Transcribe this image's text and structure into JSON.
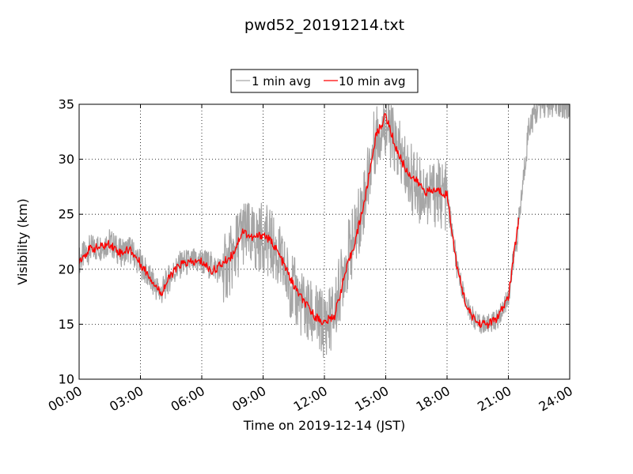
{
  "chart_data": {
    "type": "line",
    "title": "pwd52_20191214.txt",
    "xlabel": "Time on 2019-12-14 (JST)",
    "ylabel": "Visibility (km)",
    "xlim": [
      0,
      24
    ],
    "ylim": [
      10,
      35
    ],
    "x_ticks": [
      0,
      3,
      6,
      9,
      12,
      15,
      18,
      21,
      24
    ],
    "x_tick_labels": [
      "00:00",
      "03:00",
      "06:00",
      "09:00",
      "12:00",
      "15:00",
      "18:00",
      "21:00",
      "24:00"
    ],
    "y_ticks": [
      10,
      15,
      20,
      25,
      30,
      35
    ],
    "y_tick_labels": [
      "10",
      "15",
      "20",
      "25",
      "30",
      "35"
    ],
    "grid": true,
    "legend_position": "top-center",
    "series": [
      {
        "name": "1 min avg",
        "color": "#a6a6a6",
        "x": [
          0.0,
          0.5,
          1.0,
          1.5,
          2.0,
          2.5,
          3.0,
          3.5,
          4.0,
          4.5,
          5.0,
          5.5,
          6.0,
          6.5,
          7.0,
          7.5,
          8.0,
          8.5,
          9.0,
          9.5,
          10.0,
          10.5,
          11.0,
          11.5,
          12.0,
          12.5,
          13.0,
          13.5,
          14.0,
          14.5,
          15.0,
          15.5,
          16.0,
          16.5,
          17.0,
          17.5,
          18.0,
          18.5,
          19.0,
          19.5,
          20.0,
          20.5,
          21.0,
          21.5,
          22.0,
          22.5,
          23.0,
          23.5,
          24.0
        ],
        "y": [
          20.8,
          21.8,
          22.0,
          22.5,
          21.5,
          21.8,
          20.5,
          19.0,
          17.8,
          19.5,
          20.5,
          20.6,
          20.7,
          20.3,
          19.8,
          21.0,
          23.5,
          22.5,
          23.0,
          22.0,
          20.0,
          18.0,
          16.5,
          15.5,
          15.0,
          16.0,
          20.5,
          23.0,
          27.0,
          32.0,
          33.5,
          31.0,
          29.0,
          27.5,
          27.0,
          27.0,
          26.5,
          20.0,
          16.5,
          15.0,
          15.0,
          15.5,
          17.5,
          24.0,
          33.0,
          35.0,
          35.0,
          35.0,
          35.0
        ]
      },
      {
        "name": "10 min avg",
        "color": "#ff0000",
        "x": [
          0.0,
          0.5,
          1.0,
          1.5,
          2.0,
          2.5,
          3.0,
          3.5,
          4.0,
          4.5,
          5.0,
          5.5,
          6.0,
          6.5,
          7.0,
          7.5,
          8.0,
          8.5,
          9.0,
          9.5,
          10.0,
          10.5,
          11.0,
          11.5,
          12.0,
          12.5,
          13.0,
          13.5,
          14.0,
          14.5,
          15.0,
          15.5,
          16.0,
          16.5,
          17.0,
          17.5,
          18.0,
          18.5,
          19.0,
          19.5,
          20.0,
          20.5,
          21.0,
          21.5
        ],
        "y": [
          20.8,
          21.8,
          22.0,
          22.3,
          21.5,
          21.8,
          20.5,
          19.2,
          17.8,
          19.5,
          20.5,
          20.6,
          20.7,
          19.8,
          20.5,
          21.3,
          23.5,
          22.8,
          23.2,
          22.3,
          20.5,
          18.5,
          17.0,
          15.8,
          15.1,
          15.8,
          19.5,
          22.5,
          26.5,
          32.0,
          34.0,
          31.0,
          29.0,
          28.0,
          27.0,
          27.2,
          26.8,
          20.0,
          16.3,
          15.1,
          15.0,
          15.6,
          17.5,
          24.5
        ]
      }
    ]
  }
}
